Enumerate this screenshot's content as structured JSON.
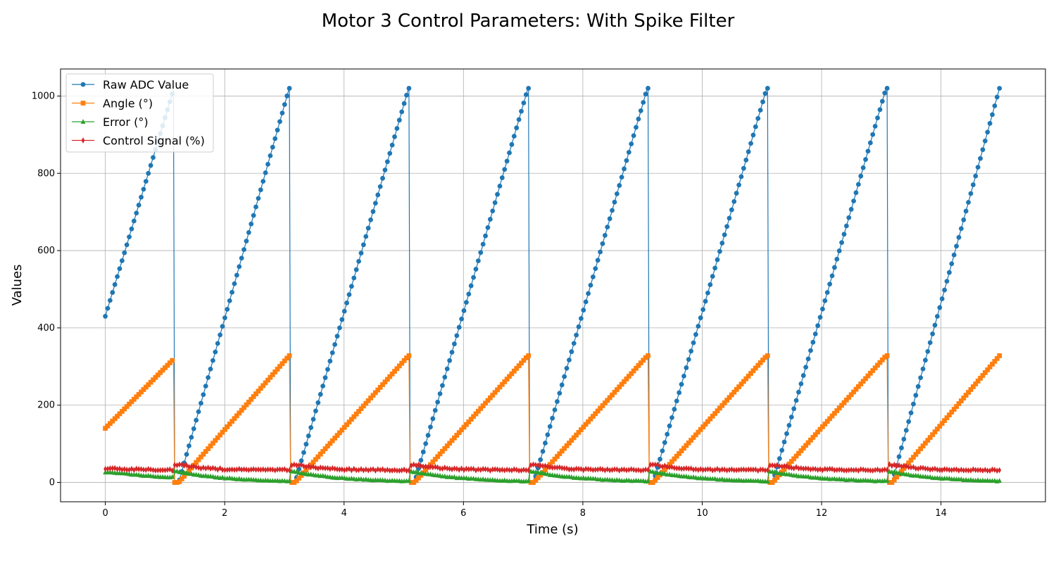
{
  "chart_data": {
    "type": "line",
    "title": "Motor 3 Control Parameters: With Spike Filter",
    "xlabel": "Time (s)",
    "ylabel": "Values",
    "xlim": [
      -0.75,
      15.75
    ],
    "ylim": [
      -50,
      1070
    ],
    "xticks": [
      0,
      2,
      4,
      6,
      8,
      10,
      12,
      14
    ],
    "yticks": [
      0,
      200,
      400,
      600,
      800,
      1000
    ],
    "grid": true,
    "legend_position": "top-left",
    "x_range": [
      0,
      15
    ],
    "sample_count": 750,
    "ramp_resets_s": [
      0,
      1.15,
      3.1,
      5.1,
      7.1,
      9.1,
      11.1,
      13.1,
      15
    ],
    "series": [
      {
        "name": "Raw ADC Value",
        "color": "#1f77b4",
        "marker": "circle",
        "description": "sawtooth ramp from ~0 up to ~1020 each cycle (starts at ~430), sharp drop at cycle end",
        "peak": 1020,
        "start_value": 430
      },
      {
        "name": "Angle (°)",
        "color": "#ff7f0e",
        "marker": "square",
        "description": "sawtooth ramp 0 to ~328 degrees each cycle (starts at ~140)",
        "peak": 328,
        "start_value": 140
      },
      {
        "name": "Error (°)",
        "color": "#2ca02c",
        "marker": "triangle",
        "description": "small error ~30 after each reset, decaying toward ~0",
        "peak": 30,
        "start_value": 27
      },
      {
        "name": "Control Signal (%)",
        "color": "#d62728",
        "marker": "diamond",
        "description": "nearly constant ~30-40 with bumps to ~45 after each reset",
        "baseline": 32,
        "peak": 45
      }
    ]
  }
}
